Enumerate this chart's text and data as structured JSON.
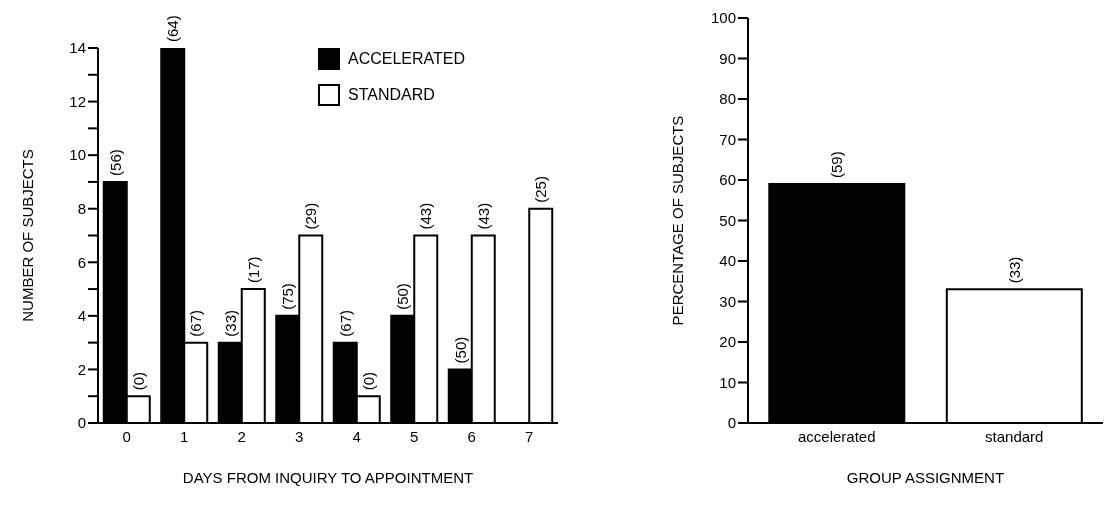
{
  "chart_data": [
    {
      "type": "bar",
      "xlabel": "DAYS FROM INQUIRY TO APPOINTMENT",
      "ylabel": "NUMBER OF SUBJECTS",
      "categories": [
        "0",
        "1",
        "2",
        "3",
        "4",
        "5",
        "6",
        "7"
      ],
      "series": [
        {
          "name": "ACCELERATED",
          "color": "#000000",
          "values": [
            9,
            14,
            3,
            4,
            3,
            4,
            2,
            null
          ]
        },
        {
          "name": "STANDARD",
          "color": "#ffffff",
          "values": [
            1,
            3,
            5,
            7,
            1,
            7,
            7,
            8
          ]
        }
      ],
      "annotations": [
        {
          "text": "(56)",
          "x": "0",
          "y": 9
        },
        {
          "text": "(0)",
          "x": "0",
          "y": 1
        },
        {
          "text": "(64)",
          "x": "1",
          "y": 14
        },
        {
          "text": "(67)",
          "x": "1",
          "y": 3
        },
        {
          "text": "(33)",
          "x": "2",
          "y": 3
        },
        {
          "text": "(17)",
          "x": "2",
          "y": 5
        },
        {
          "text": "(75)",
          "x": "3",
          "y": 4
        },
        {
          "text": "(29)",
          "x": "3",
          "y": 7
        },
        {
          "text": "(67)",
          "x": "4",
          "y": 3
        },
        {
          "text": "(0)",
          "x": "4",
          "y": 1
        },
        {
          "text": "(50)",
          "x": "5",
          "y": 4
        },
        {
          "text": "(43)",
          "x": "5",
          "y": 7
        },
        {
          "text": "(50)",
          "x": "6",
          "y": 2
        },
        {
          "text": "(43)",
          "x": "6",
          "y": 7
        },
        {
          "text": "(25)",
          "x": "7",
          "y": 8
        }
      ],
      "ylim": [
        0,
        14
      ],
      "yticks": [
        0,
        {
          "value": 1,
          "label": null
        },
        2,
        {
          "value": 3,
          "label": null
        },
        4,
        {
          "value": 5,
          "label": null
        },
        6,
        {
          "value": 7,
          "label": null
        },
        8,
        {
          "value": 9,
          "label": null
        },
        10,
        {
          "value": 11,
          "label": null
        },
        12,
        {
          "value": 13,
          "label": null
        },
        14
      ],
      "legend": "top right"
    },
    {
      "type": "bar",
      "xlabel": "GROUP ASSIGNMENT",
      "ylabel": "PERCENTAGE OF SUBJECTS",
      "categories": [
        "accelerated",
        "standard"
      ],
      "values": [
        59,
        33
      ],
      "colors": [
        "#000000",
        "#ffffff"
      ],
      "value_labels": [
        "(59)",
        "(33)"
      ],
      "ylim": [
        0,
        100
      ],
      "yticks": [
        0,
        10,
        20,
        30,
        40,
        50,
        60,
        70,
        80,
        90,
        100
      ]
    }
  ]
}
